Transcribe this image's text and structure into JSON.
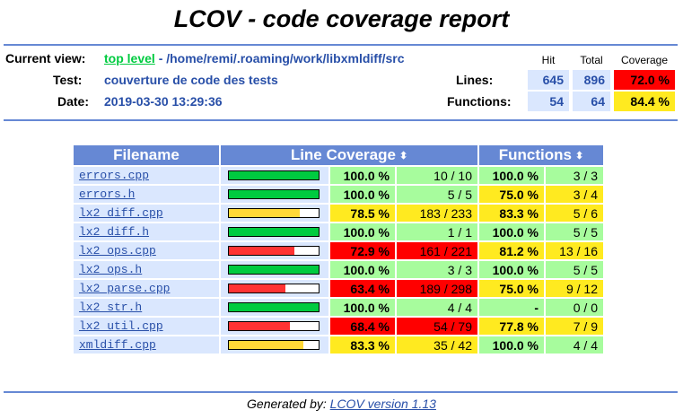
{
  "page": {
    "title": "LCOV - code coverage report"
  },
  "header": {
    "current_view_label": "Current view:",
    "top_level_link": "top level",
    "path": "- /home/remi/.roaming/work/libxmldiff/src",
    "test_label": "Test:",
    "test_value": "couverture de code des tests",
    "date_label": "Date:",
    "date_value": "2019-03-30 13:29:36"
  },
  "summary": {
    "col_hit": "Hit",
    "col_total": "Total",
    "col_coverage": "Coverage",
    "lines_label": "Lines:",
    "lines_hit": "645",
    "lines_total": "896",
    "lines_cov": "72.0 %",
    "functions_label": "Functions:",
    "functions_hit": "54",
    "functions_total": "64",
    "functions_cov": "84.4 %"
  },
  "table": {
    "col_filename": "Filename",
    "col_line_coverage": "Line Coverage",
    "col_functions": "Functions",
    "sort_icon": "⬍",
    "rows": [
      {
        "file": "errors.cpp",
        "bar": 1.0,
        "pct": "100.0 %",
        "lines": "10 / 10",
        "lvl": "hi",
        "fpct": "100.0 %",
        "fnum": "3 / 3",
        "flvl": "hi"
      },
      {
        "file": "errors.h",
        "bar": 1.0,
        "pct": "100.0 %",
        "lines": "5 / 5",
        "lvl": "hi",
        "fpct": "75.0 %",
        "fnum": "3 / 4",
        "flvl": "med"
      },
      {
        "file": "lx2_diff.cpp",
        "bar": 0.785,
        "pct": "78.5 %",
        "lines": "183 / 233",
        "lvl": "med",
        "fpct": "83.3 %",
        "fnum": "5 / 6",
        "flvl": "med"
      },
      {
        "file": "lx2_diff.h",
        "bar": 1.0,
        "pct": "100.0 %",
        "lines": "1 / 1",
        "lvl": "hi",
        "fpct": "100.0 %",
        "fnum": "5 / 5",
        "flvl": "hi"
      },
      {
        "file": "lx2_ops.cpp",
        "bar": 0.729,
        "pct": "72.9 %",
        "lines": "161 / 221",
        "lvl": "lo",
        "fpct": "81.2 %",
        "fnum": "13 / 16",
        "flvl": "med"
      },
      {
        "file": "lx2_ops.h",
        "bar": 1.0,
        "pct": "100.0 %",
        "lines": "3 / 3",
        "lvl": "hi",
        "fpct": "100.0 %",
        "fnum": "5 / 5",
        "flvl": "hi"
      },
      {
        "file": "lx2_parse.cpp",
        "bar": 0.634,
        "pct": "63.4 %",
        "lines": "189 / 298",
        "lvl": "lo",
        "fpct": "75.0 %",
        "fnum": "9 / 12",
        "flvl": "med"
      },
      {
        "file": "lx2_str.h",
        "bar": 1.0,
        "pct": "100.0 %",
        "lines": "4 / 4",
        "lvl": "hi",
        "fpct": "-",
        "fnum": "0 / 0",
        "flvl": "hi"
      },
      {
        "file": "lx2_util.cpp",
        "bar": 0.684,
        "pct": "68.4 %",
        "lines": "54 / 79",
        "lvl": "lo",
        "fpct": "77.8 %",
        "fnum": "7 / 9",
        "flvl": "med"
      },
      {
        "file": "xmldiff.cpp",
        "bar": 0.833,
        "pct": "83.3 %",
        "lines": "35 / 42",
        "lvl": "med",
        "fpct": "100.0 %",
        "fnum": "4 / 4",
        "flvl": "hi"
      }
    ]
  },
  "footer": {
    "generated_by": "Generated by:",
    "lcov_link": "LCOV version 1.13"
  },
  "colors": {
    "header_blue": "#6688d4",
    "row_blue": "#dae7fe",
    "hi": "#a7fc9d",
    "med": "#ffea20",
    "lo": "#ff0000",
    "bar_hi": "#00cb40",
    "bar_med": "#ffd838",
    "bar_lo": "#ff3333",
    "link": "#284fa8"
  }
}
